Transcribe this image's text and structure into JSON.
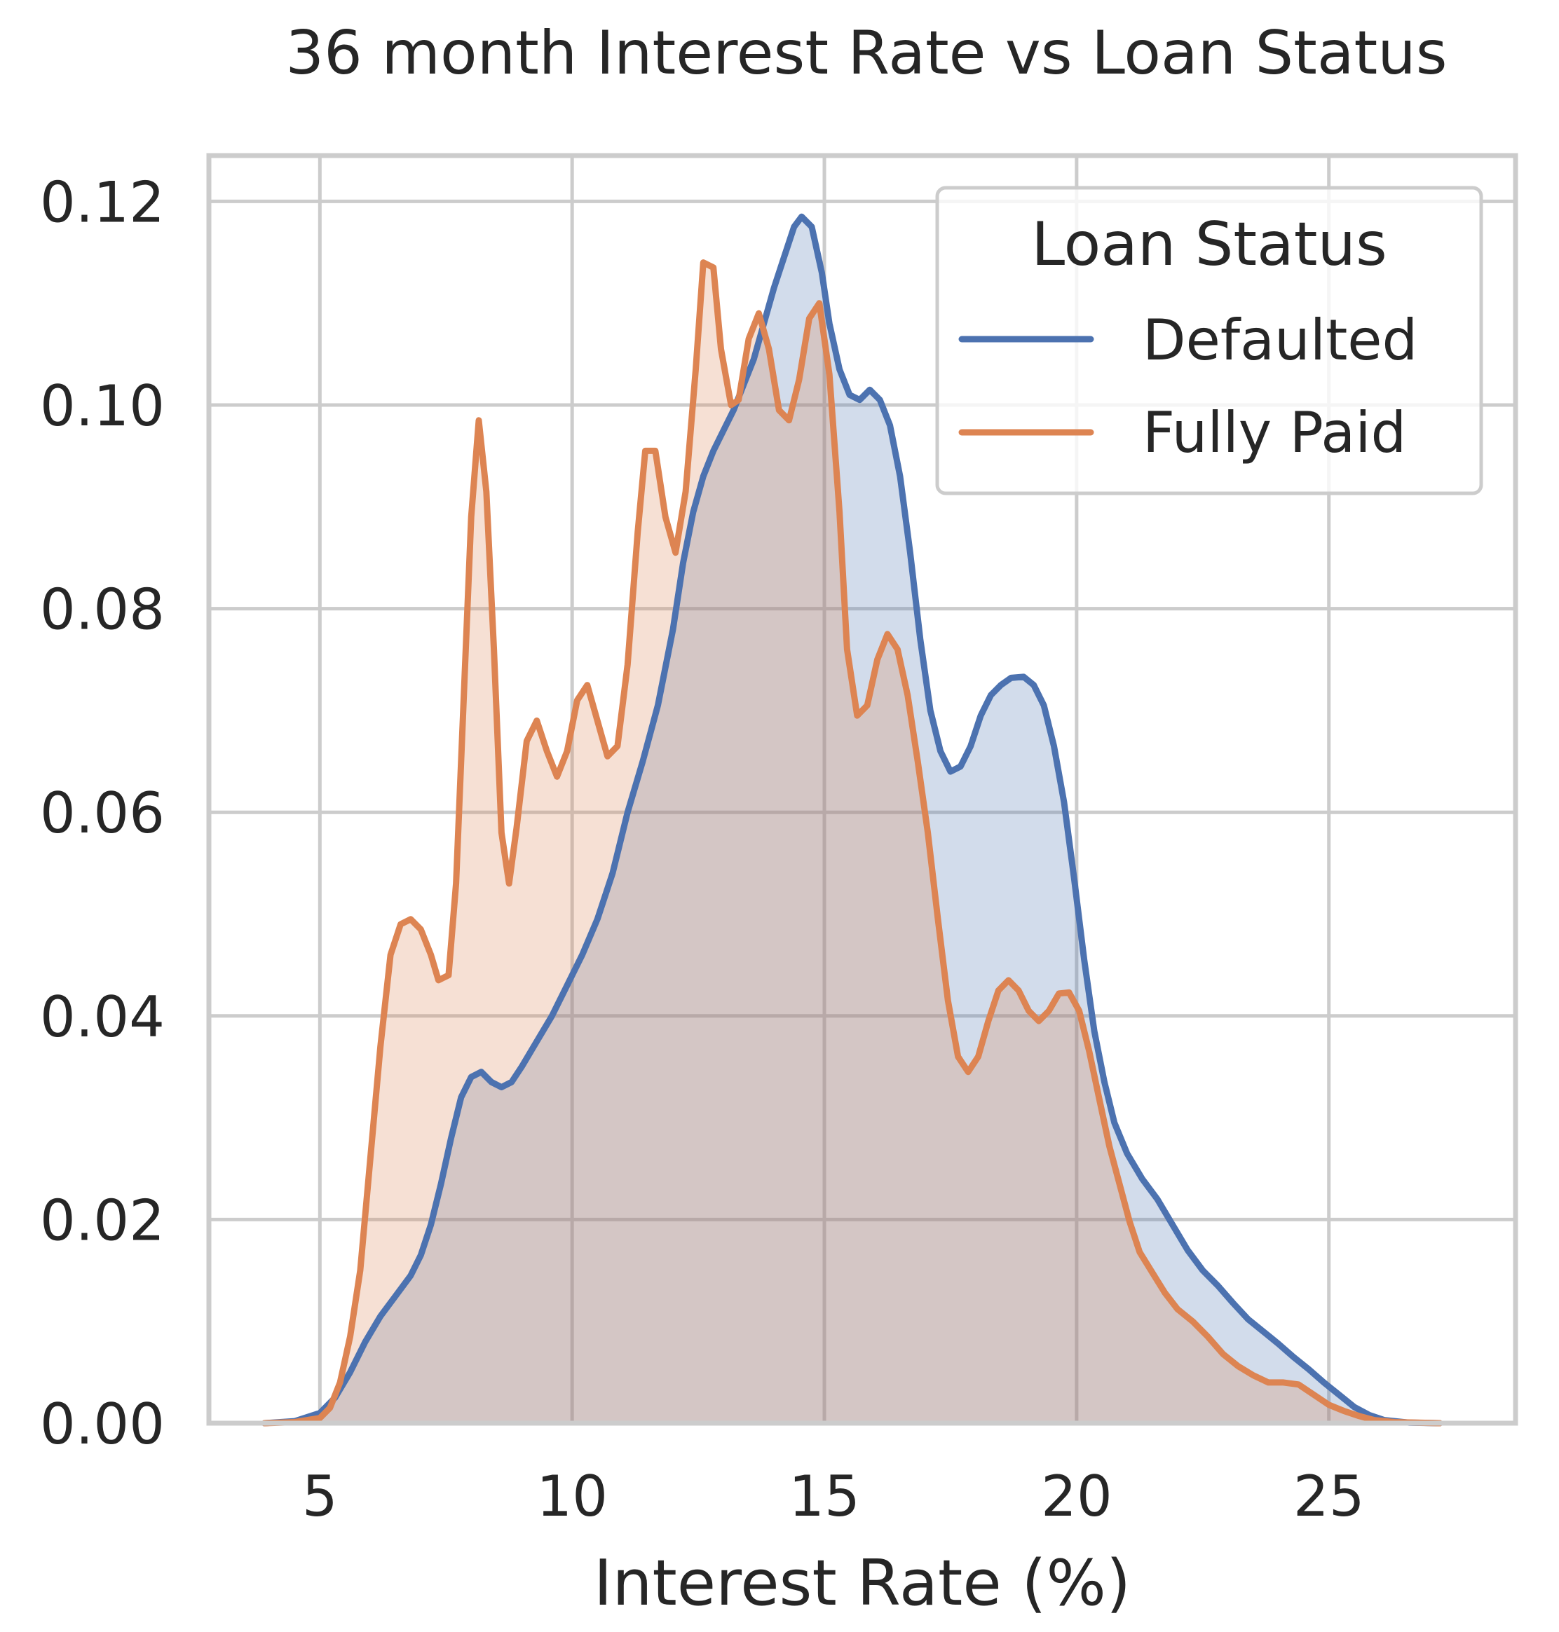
{
  "chart_data": {
    "type": "area",
    "title": "36 month Interest Rate vs Loan Status",
    "xlabel": "Interest Rate (%)",
    "ylabel": "",
    "xlim": [
      2.8,
      28.7
    ],
    "ylim": [
      0.0,
      0.1245
    ],
    "x_ticks": [
      {
        "value": 5,
        "label": "5"
      },
      {
        "value": 10,
        "label": "10"
      },
      {
        "value": 15,
        "label": "15"
      },
      {
        "value": 20,
        "label": "20"
      },
      {
        "value": 25,
        "label": "25"
      }
    ],
    "y_ticks": [
      {
        "value": 0.0,
        "label": "0.00"
      },
      {
        "value": 0.02,
        "label": "0.02"
      },
      {
        "value": 0.04,
        "label": "0.04"
      },
      {
        "value": 0.06,
        "label": "0.06"
      },
      {
        "value": 0.08,
        "label": "0.08"
      },
      {
        "value": 0.1,
        "label": "0.10"
      },
      {
        "value": 0.12,
        "label": "0.12"
      }
    ],
    "grid": true,
    "legend": {
      "title": "Loan Status",
      "position": "top-right"
    },
    "series": [
      {
        "name": "Defaulted",
        "color": "#4c72b0",
        "fill_opacity": 0.25,
        "points": [
          [
            3.9,
            0.0
          ],
          [
            4.5,
            0.0002
          ],
          [
            5.0,
            0.001
          ],
          [
            5.3,
            0.0025
          ],
          [
            5.6,
            0.005
          ],
          [
            5.9,
            0.008
          ],
          [
            6.2,
            0.0105
          ],
          [
            6.5,
            0.0125
          ],
          [
            6.8,
            0.0145
          ],
          [
            7.0,
            0.0165
          ],
          [
            7.2,
            0.0195
          ],
          [
            7.4,
            0.0235
          ],
          [
            7.6,
            0.028
          ],
          [
            7.8,
            0.032
          ],
          [
            8.0,
            0.034
          ],
          [
            8.2,
            0.0345
          ],
          [
            8.4,
            0.0335
          ],
          [
            8.6,
            0.033
          ],
          [
            8.8,
            0.0335
          ],
          [
            9.0,
            0.035
          ],
          [
            9.3,
            0.0375
          ],
          [
            9.6,
            0.04
          ],
          [
            9.9,
            0.043
          ],
          [
            10.2,
            0.046
          ],
          [
            10.5,
            0.0495
          ],
          [
            10.8,
            0.054
          ],
          [
            11.1,
            0.06
          ],
          [
            11.4,
            0.065
          ],
          [
            11.7,
            0.0705
          ],
          [
            12.0,
            0.078
          ],
          [
            12.2,
            0.0845
          ],
          [
            12.4,
            0.0895
          ],
          [
            12.6,
            0.093
          ],
          [
            12.8,
            0.0955
          ],
          [
            13.0,
            0.0975
          ],
          [
            13.2,
            0.0995
          ],
          [
            13.4,
            0.102
          ],
          [
            13.6,
            0.1045
          ],
          [
            13.8,
            0.108
          ],
          [
            14.0,
            0.1115
          ],
          [
            14.2,
            0.1145
          ],
          [
            14.4,
            0.1175
          ],
          [
            14.55,
            0.1185
          ],
          [
            14.75,
            0.1175
          ],
          [
            14.95,
            0.113
          ],
          [
            15.1,
            0.108
          ],
          [
            15.3,
            0.1035
          ],
          [
            15.5,
            0.101
          ],
          [
            15.7,
            0.1005
          ],
          [
            15.9,
            0.1015
          ],
          [
            16.1,
            0.1005
          ],
          [
            16.3,
            0.098
          ],
          [
            16.5,
            0.093
          ],
          [
            16.7,
            0.0855
          ],
          [
            16.9,
            0.077
          ],
          [
            17.1,
            0.07
          ],
          [
            17.3,
            0.066
          ],
          [
            17.5,
            0.064
          ],
          [
            17.7,
            0.0645
          ],
          [
            17.9,
            0.0665
          ],
          [
            18.1,
            0.0695
          ],
          [
            18.3,
            0.0715
          ],
          [
            18.5,
            0.0725
          ],
          [
            18.7,
            0.0732
          ],
          [
            18.95,
            0.0733
          ],
          [
            19.15,
            0.0725
          ],
          [
            19.35,
            0.0705
          ],
          [
            19.55,
            0.0665
          ],
          [
            19.75,
            0.061
          ],
          [
            19.95,
            0.0535
          ],
          [
            20.15,
            0.0455
          ],
          [
            20.35,
            0.0385
          ],
          [
            20.55,
            0.0335
          ],
          [
            20.75,
            0.0295
          ],
          [
            21.0,
            0.0265
          ],
          [
            21.3,
            0.024
          ],
          [
            21.6,
            0.022
          ],
          [
            21.9,
            0.0195
          ],
          [
            22.2,
            0.017
          ],
          [
            22.5,
            0.015
          ],
          [
            22.8,
            0.0135
          ],
          [
            23.1,
            0.0118
          ],
          [
            23.4,
            0.0102
          ],
          [
            23.7,
            0.009
          ],
          [
            24.0,
            0.0078
          ],
          [
            24.3,
            0.0065
          ],
          [
            24.6,
            0.0053
          ],
          [
            24.9,
            0.004
          ],
          [
            25.2,
            0.0028
          ],
          [
            25.5,
            0.0016
          ],
          [
            25.8,
            0.0008
          ],
          [
            26.1,
            0.0003
          ],
          [
            26.6,
            5e-05
          ],
          [
            27.2,
            0.0
          ]
        ]
      },
      {
        "name": "Fully Paid",
        "color": "#dd8452",
        "fill_opacity": 0.25,
        "points": [
          [
            3.9,
            0.0
          ],
          [
            4.5,
            0.0001
          ],
          [
            5.0,
            0.0005
          ],
          [
            5.2,
            0.0015
          ],
          [
            5.4,
            0.004
          ],
          [
            5.6,
            0.0085
          ],
          [
            5.8,
            0.015
          ],
          [
            6.0,
            0.026
          ],
          [
            6.2,
            0.037
          ],
          [
            6.4,
            0.046
          ],
          [
            6.6,
            0.049
          ],
          [
            6.8,
            0.0495
          ],
          [
            7.0,
            0.0485
          ],
          [
            7.2,
            0.046
          ],
          [
            7.35,
            0.0435
          ],
          [
            7.55,
            0.044
          ],
          [
            7.7,
            0.053
          ],
          [
            7.85,
            0.071
          ],
          [
            8.0,
            0.089
          ],
          [
            8.15,
            0.0985
          ],
          [
            8.3,
            0.0915
          ],
          [
            8.45,
            0.076
          ],
          [
            8.6,
            0.058
          ],
          [
            8.75,
            0.053
          ],
          [
            8.9,
            0.0585
          ],
          [
            9.1,
            0.067
          ],
          [
            9.3,
            0.069
          ],
          [
            9.5,
            0.066
          ],
          [
            9.7,
            0.0635
          ],
          [
            9.9,
            0.066
          ],
          [
            10.1,
            0.071
          ],
          [
            10.3,
            0.0725
          ],
          [
            10.5,
            0.069
          ],
          [
            10.7,
            0.0655
          ],
          [
            10.9,
            0.0665
          ],
          [
            11.1,
            0.0745
          ],
          [
            11.3,
            0.0875
          ],
          [
            11.45,
            0.0955
          ],
          [
            11.65,
            0.0955
          ],
          [
            11.85,
            0.089
          ],
          [
            12.05,
            0.0855
          ],
          [
            12.25,
            0.0915
          ],
          [
            12.45,
            0.1035
          ],
          [
            12.6,
            0.114
          ],
          [
            12.8,
            0.1135
          ],
          [
            12.95,
            0.1055
          ],
          [
            13.15,
            0.1
          ],
          [
            13.3,
            0.1005
          ],
          [
            13.5,
            0.1065
          ],
          [
            13.7,
            0.109
          ],
          [
            13.9,
            0.1055
          ],
          [
            14.1,
            0.0995
          ],
          [
            14.3,
            0.0985
          ],
          [
            14.5,
            0.1025
          ],
          [
            14.7,
            0.1085
          ],
          [
            14.9,
            0.11
          ],
          [
            15.1,
            0.103
          ],
          [
            15.3,
            0.0895
          ],
          [
            15.45,
            0.076
          ],
          [
            15.65,
            0.0695
          ],
          [
            15.85,
            0.0705
          ],
          [
            16.05,
            0.075
          ],
          [
            16.25,
            0.0775
          ],
          [
            16.45,
            0.076
          ],
          [
            16.65,
            0.0715
          ],
          [
            16.85,
            0.065
          ],
          [
            17.05,
            0.058
          ],
          [
            17.25,
            0.0495
          ],
          [
            17.45,
            0.0415
          ],
          [
            17.65,
            0.036
          ],
          [
            17.85,
            0.0345
          ],
          [
            18.05,
            0.036
          ],
          [
            18.25,
            0.0395
          ],
          [
            18.45,
            0.0425
          ],
          [
            18.65,
            0.0435
          ],
          [
            18.85,
            0.0425
          ],
          [
            19.05,
            0.0405
          ],
          [
            19.25,
            0.0395
          ],
          [
            19.45,
            0.0405
          ],
          [
            19.65,
            0.0422
          ],
          [
            19.85,
            0.0423
          ],
          [
            20.05,
            0.0405
          ],
          [
            20.25,
            0.0365
          ],
          [
            20.45,
            0.0318
          ],
          [
            20.65,
            0.0272
          ],
          [
            20.85,
            0.0235
          ],
          [
            21.05,
            0.0198
          ],
          [
            21.25,
            0.0168
          ],
          [
            21.5,
            0.0148
          ],
          [
            21.75,
            0.0128
          ],
          [
            22.0,
            0.0112
          ],
          [
            22.3,
            0.01
          ],
          [
            22.6,
            0.0085
          ],
          [
            22.9,
            0.0068
          ],
          [
            23.2,
            0.0056
          ],
          [
            23.5,
            0.0047
          ],
          [
            23.8,
            0.004
          ],
          [
            24.1,
            0.004
          ],
          [
            24.4,
            0.0038
          ],
          [
            24.7,
            0.0028
          ],
          [
            25.0,
            0.0018
          ],
          [
            25.3,
            0.0012
          ],
          [
            25.6,
            0.0007
          ],
          [
            25.9,
            0.0003
          ],
          [
            26.3,
            0.0001
          ],
          [
            27.2,
            0.0
          ]
        ]
      }
    ]
  }
}
